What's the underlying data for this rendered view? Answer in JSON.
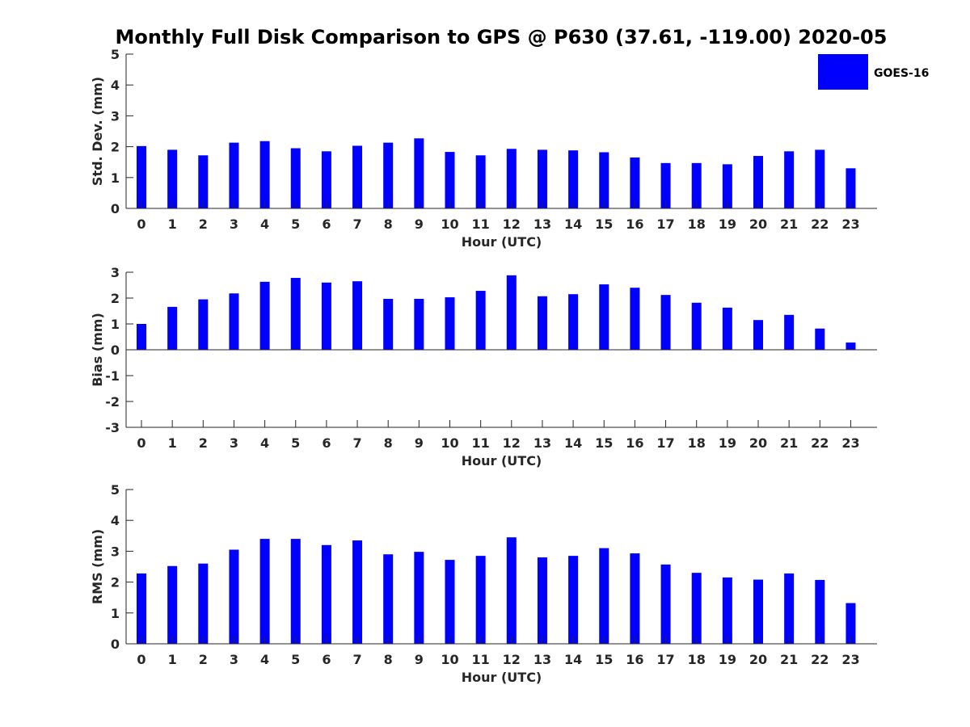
{
  "title": "Monthly Full Disk Comparison to GPS @ P630 (37.61, -119.00) 2020-05",
  "legend": {
    "label": "GOES-16",
    "color": "#0000ff",
    "placement": "top-right"
  },
  "chart_data": [
    {
      "type": "bar",
      "xlabel": "Hour (UTC)",
      "ylabel": "Std. Dev. (mm)",
      "ylim": [
        0,
        5
      ],
      "yticks": [
        0,
        1,
        2,
        3,
        4,
        5
      ],
      "categories": [
        "0",
        "1",
        "2",
        "3",
        "4",
        "5",
        "6",
        "7",
        "8",
        "9",
        "10",
        "11",
        "12",
        "13",
        "14",
        "15",
        "16",
        "17",
        "18",
        "19",
        "20",
        "21",
        "22",
        "23"
      ],
      "series": [
        {
          "name": "GOES-16",
          "color": "#0000ff",
          "values": [
            2.02,
            1.9,
            1.72,
            2.13,
            2.18,
            1.95,
            1.85,
            2.03,
            2.13,
            2.27,
            1.83,
            1.72,
            1.93,
            1.9,
            1.88,
            1.82,
            1.65,
            1.47,
            1.47,
            1.43,
            1.7,
            1.85,
            1.9,
            1.3
          ]
        }
      ]
    },
    {
      "type": "bar",
      "xlabel": "Hour (UTC)",
      "ylabel": "Bias (mm)",
      "ylim": [
        -3,
        3
      ],
      "yticks": [
        -3,
        -2,
        -1,
        0,
        1,
        2,
        3
      ],
      "categories": [
        "0",
        "1",
        "2",
        "3",
        "4",
        "5",
        "6",
        "7",
        "8",
        "9",
        "10",
        "11",
        "12",
        "13",
        "14",
        "15",
        "16",
        "17",
        "18",
        "19",
        "20",
        "21",
        "22",
        "23"
      ],
      "series": [
        {
          "name": "GOES-16",
          "color": "#0000ff",
          "values": [
            1.0,
            1.66,
            1.95,
            2.18,
            2.63,
            2.78,
            2.6,
            2.65,
            1.97,
            1.97,
            2.03,
            2.28,
            2.88,
            2.07,
            2.15,
            2.53,
            2.4,
            2.12,
            1.82,
            1.63,
            1.15,
            1.35,
            0.82,
            0.28
          ]
        }
      ]
    },
    {
      "type": "bar",
      "xlabel": "Hour (UTC)",
      "ylabel": "RMS (mm)",
      "ylim": [
        0,
        5
      ],
      "yticks": [
        0,
        1,
        2,
        3,
        4,
        5
      ],
      "categories": [
        "0",
        "1",
        "2",
        "3",
        "4",
        "5",
        "6",
        "7",
        "8",
        "9",
        "10",
        "11",
        "12",
        "13",
        "14",
        "15",
        "16",
        "17",
        "18",
        "19",
        "20",
        "21",
        "22",
        "23"
      ],
      "series": [
        {
          "name": "GOES-16",
          "color": "#0000ff",
          "values": [
            2.28,
            2.52,
            2.6,
            3.05,
            3.4,
            3.4,
            3.2,
            3.35,
            2.9,
            2.98,
            2.72,
            2.85,
            3.45,
            2.8,
            2.85,
            3.1,
            2.93,
            2.57,
            2.3,
            2.15,
            2.08,
            2.28,
            2.07,
            1.32
          ]
        }
      ]
    }
  ]
}
